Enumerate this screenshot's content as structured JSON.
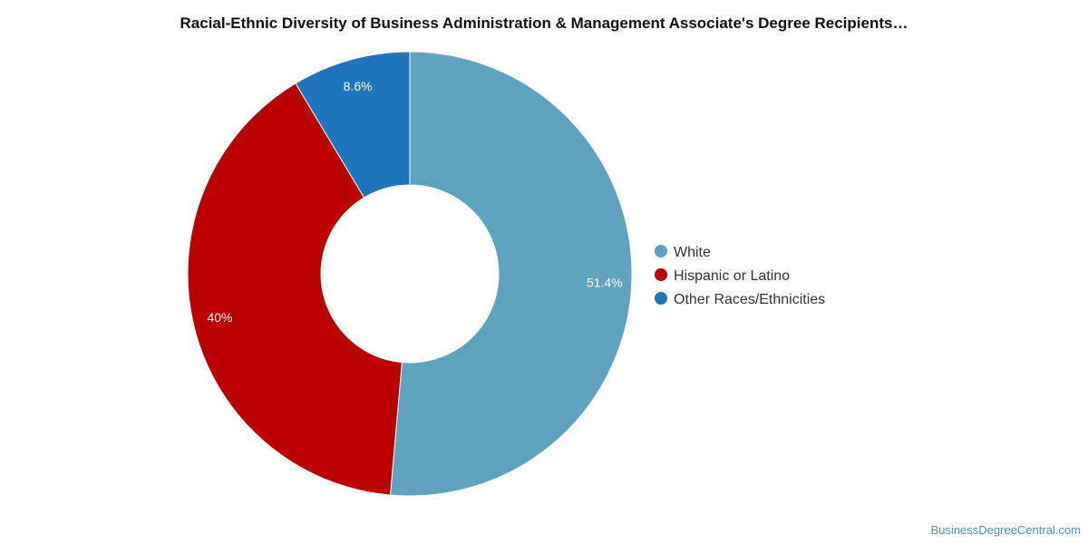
{
  "chart_data": {
    "type": "pie",
    "variant": "donut",
    "title": "Racial-Ethnic Diversity of Business Administration & Management Associate's Degree Recipients…",
    "slices": [
      {
        "name": "White",
        "value": 51.4,
        "label": "51.4%",
        "color": "#5ea2c0"
      },
      {
        "name": "Hispanic or Latino",
        "value": 40,
        "label": "40%",
        "color": "#bb0000"
      },
      {
        "name": "Other Races/Ethnicities",
        "value": 8.6,
        "label": "8.6%",
        "color": "#1f75bb"
      }
    ],
    "legend_position": "right"
  },
  "source": "BusinessDegreeCentral.com"
}
